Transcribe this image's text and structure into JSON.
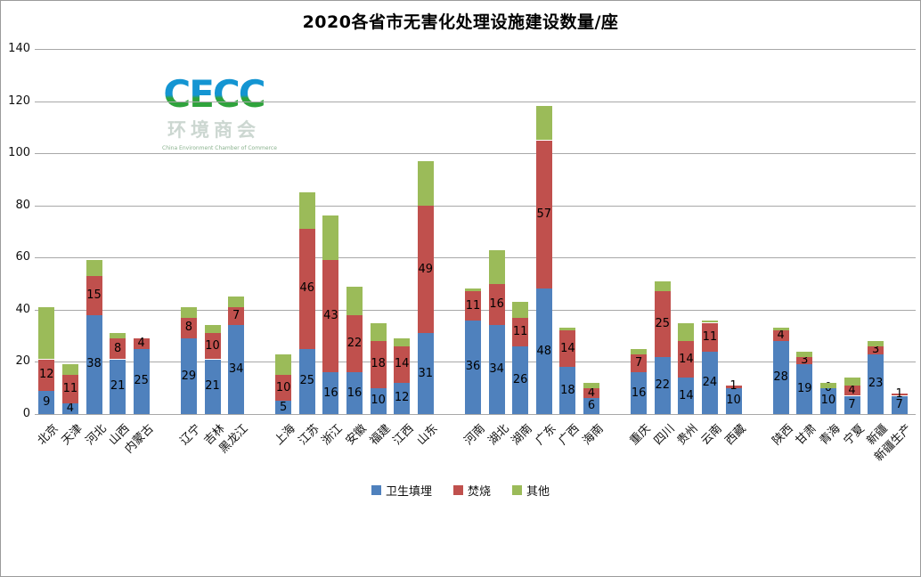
{
  "watermark": {
    "logo": "CECC",
    "subtitle": "环境商会",
    "tagline": "China Environment Chamber of Commerce"
  },
  "colors": {
    "landfill_blue": "#4F81BD",
    "incineration_red": "#C0504D",
    "other_green": "#9BBB59",
    "gridline_gray": "#a8a8a8"
  },
  "chart_data": {
    "type": "bar",
    "stacked": true,
    "title": "2020各省市无害化处理设施建设数量/座",
    "xlabel": "",
    "ylabel": "",
    "ylim": [
      0,
      140
    ],
    "yticks": [
      0,
      20,
      40,
      60,
      80,
      100,
      120,
      140
    ],
    "grid": true,
    "legend_position": "bottom",
    "categories": [
      "北京",
      "天津",
      "河北",
      "山西",
      "内蒙古",
      "辽宁",
      "吉林",
      "黑龙江",
      "上海",
      "江苏",
      "浙江",
      "安徽",
      "福建",
      "江西",
      "山东",
      "河南",
      "湖北",
      "湖南",
      "广东",
      "广西",
      "海南",
      "重庆",
      "四川",
      "贵州",
      "云南",
      "西藏",
      "陕西",
      "甘肃",
      "青海",
      "宁夏",
      "新疆",
      "新疆生产"
    ],
    "group_sizes": [
      5,
      3,
      7,
      6,
      5,
      6
    ],
    "series": [
      {
        "name": "卫生填埋",
        "color": "#4F81BD",
        "show_labels": true,
        "values": [
          9,
          4,
          38,
          21,
          25,
          29,
          21,
          34,
          5,
          25,
          16,
          16,
          10,
          12,
          31,
          36,
          34,
          26,
          48,
          18,
          6,
          16,
          22,
          14,
          24,
          10,
          28,
          19,
          10,
          7,
          23,
          7
        ]
      },
      {
        "name": "焚烧",
        "color": "#C0504D",
        "show_labels": true,
        "values": [
          12,
          11,
          15,
          8,
          4,
          8,
          10,
          7,
          10,
          46,
          43,
          22,
          18,
          14,
          49,
          11,
          16,
          11,
          57,
          14,
          4,
          7,
          25,
          14,
          11,
          1,
          4,
          3,
          0,
          4,
          3,
          1
        ]
      },
      {
        "name": "其他",
        "color": "#9BBB59",
        "show_labels": false,
        "values": [
          20,
          4,
          6,
          2,
          0,
          4,
          3,
          4,
          8,
          14,
          17,
          11,
          7,
          3,
          17,
          1,
          13,
          6,
          13,
          1,
          2,
          2,
          4,
          7,
          1,
          0,
          1,
          2,
          2,
          3,
          2,
          0
        ]
      }
    ]
  }
}
